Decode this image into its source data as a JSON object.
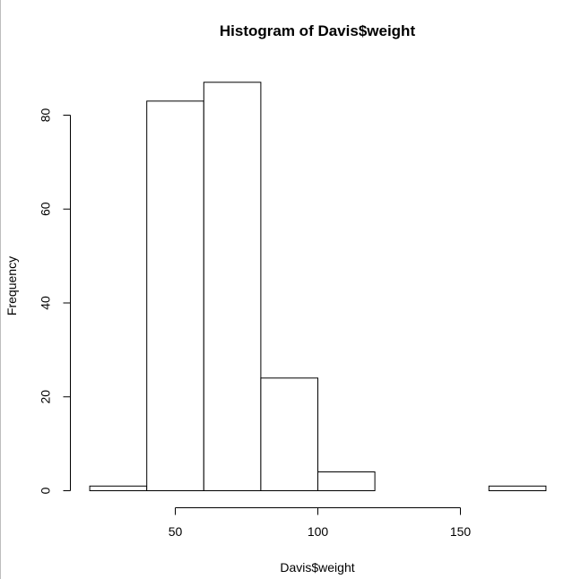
{
  "chart_data": {
    "type": "bar",
    "title": "Histogram of Davis$weight",
    "xlabel": "Davis$weight",
    "ylabel": "Frequency",
    "bins": [
      {
        "start": 20,
        "end": 40,
        "count": 1
      },
      {
        "start": 40,
        "end": 60,
        "count": 83
      },
      {
        "start": 60,
        "end": 80,
        "count": 87
      },
      {
        "start": 80,
        "end": 100,
        "count": 24
      },
      {
        "start": 100,
        "end": 120,
        "count": 4
      },
      {
        "start": 120,
        "end": 140,
        "count": 0
      },
      {
        "start": 140,
        "end": 160,
        "count": 0
      },
      {
        "start": 160,
        "end": 180,
        "count": 1
      }
    ],
    "x_ticks": [
      50,
      100,
      150
    ],
    "y_ticks": [
      0,
      20,
      40,
      60,
      80
    ],
    "xlim": [
      50,
      150
    ],
    "ylim": [
      0,
      80
    ],
    "grid": false,
    "colors": {
      "bar_fill": "#ffffff",
      "bar_stroke": "#000000"
    }
  }
}
